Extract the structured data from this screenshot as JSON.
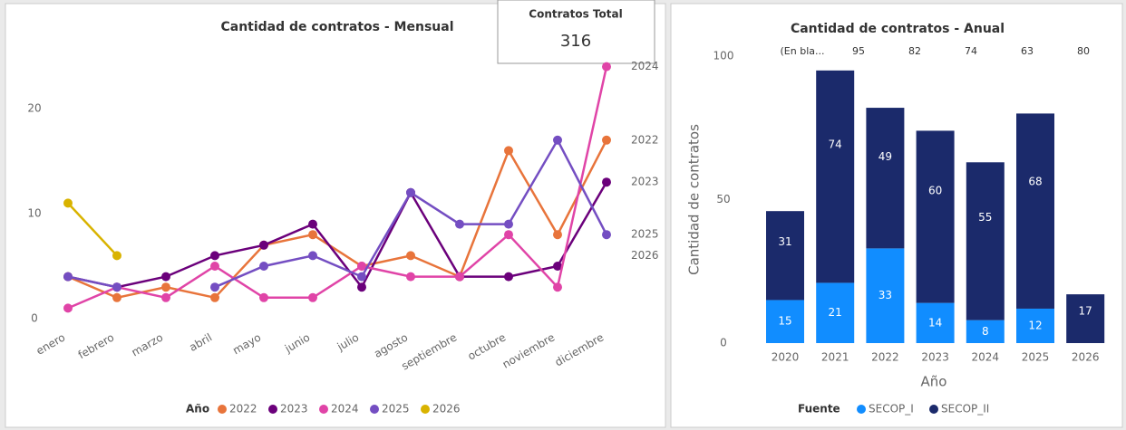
{
  "chart_data": [
    {
      "type": "line",
      "title": "Cantidad de contratos - Mensual",
      "categories": [
        "enero",
        "febrero",
        "marzo",
        "abril",
        "mayo",
        "junio",
        "julio",
        "agosto",
        "septiembre",
        "octubre",
        "noviembre",
        "diciembre"
      ],
      "series": [
        {
          "name": "2022",
          "color": "#e8743b",
          "values": [
            4,
            2,
            3,
            2,
            7,
            8,
            5,
            6,
            4,
            16,
            8,
            17
          ]
        },
        {
          "name": "2023",
          "color": "#6b007b",
          "values": [
            4,
            3,
            4,
            6,
            7,
            9,
            3,
            12,
            4,
            4,
            5,
            13
          ]
        },
        {
          "name": "2024",
          "color": "#e044a7",
          "values": [
            1,
            3,
            2,
            5,
            2,
            2,
            5,
            4,
            4,
            8,
            3,
            24
          ]
        },
        {
          "name": "2025",
          "color": "#744ec2",
          "values": [
            4,
            3,
            null,
            3,
            5,
            6,
            4,
            12,
            9,
            9,
            17,
            8
          ]
        },
        {
          "name": "2026",
          "color": "#d9b300",
          "values": [
            11,
            6,
            null,
            null,
            null,
            null,
            null,
            null,
            null,
            null,
            null,
            null
          ]
        }
      ],
      "legend_title": "Año",
      "ylim": [
        0,
        25
      ],
      "yticks": [
        0,
        10,
        20
      ],
      "grid": false,
      "legend": "bottom"
    },
    {
      "type": "stacked_bar",
      "title": "Cantidad de contratos - Anual",
      "categories": [
        "2020",
        "2021",
        "2022",
        "2023",
        "2024",
        "2025",
        "2026"
      ],
      "series": [
        {
          "name": "SECOP_I",
          "color": "#118dff",
          "values": [
            15,
            21,
            33,
            14,
            8,
            12,
            null
          ]
        },
        {
          "name": "SECOP_II",
          "color": "#1b2a6b",
          "values": [
            31,
            74,
            49,
            60,
            55,
            68,
            17
          ]
        }
      ],
      "header_row": [
        "(En bla...",
        95,
        82,
        74,
        63,
        80
      ],
      "y_label": "Cantidad de contratos",
      "x_label": "Año",
      "legend_title": "Fuente",
      "ylim": [
        0,
        100
      ],
      "yticks": [
        0,
        50,
        100
      ],
      "grid": false,
      "legend": "bottom"
    }
  ],
  "card": {
    "title": "Contratos Total",
    "value": 316
  }
}
